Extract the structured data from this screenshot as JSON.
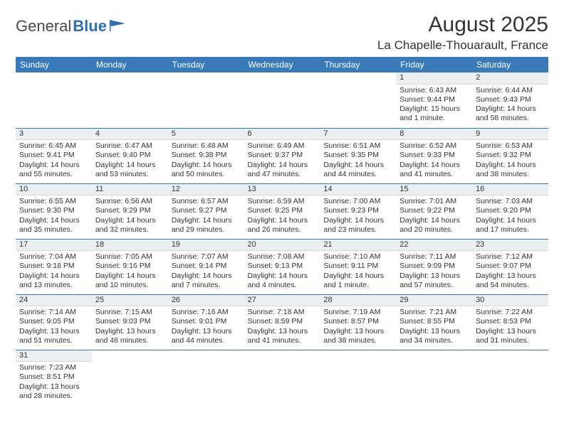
{
  "brand": {
    "part1": "General",
    "part2": "Blue"
  },
  "title": "August 2025",
  "location": "La Chapelle-Thouarault, France",
  "colors": {
    "header_bg": "#3a7ab8",
    "header_text": "#ffffff",
    "daynum_bg": "#eceff1",
    "cell_border": "#3a7ab8",
    "text": "#333333",
    "brand_blue": "#2f6fb0"
  },
  "typography": {
    "title_fontsize": 30,
    "location_fontsize": 17,
    "header_fontsize": 12,
    "cell_fontsize": 10.5
  },
  "weekdays": [
    "Sunday",
    "Monday",
    "Tuesday",
    "Wednesday",
    "Thursday",
    "Friday",
    "Saturday"
  ],
  "weeks": [
    [
      null,
      null,
      null,
      null,
      null,
      {
        "n": "1",
        "sr": "Sunrise: 6:43 AM",
        "ss": "Sunset: 9:44 PM",
        "d1": "Daylight: 15 hours",
        "d2": "and 1 minute."
      },
      {
        "n": "2",
        "sr": "Sunrise: 6:44 AM",
        "ss": "Sunset: 9:43 PM",
        "d1": "Daylight: 14 hours",
        "d2": "and 58 minutes."
      }
    ],
    [
      {
        "n": "3",
        "sr": "Sunrise: 6:45 AM",
        "ss": "Sunset: 9:41 PM",
        "d1": "Daylight: 14 hours",
        "d2": "and 55 minutes."
      },
      {
        "n": "4",
        "sr": "Sunrise: 6:47 AM",
        "ss": "Sunset: 9:40 PM",
        "d1": "Daylight: 14 hours",
        "d2": "and 53 minutes."
      },
      {
        "n": "5",
        "sr": "Sunrise: 6:48 AM",
        "ss": "Sunset: 9:38 PM",
        "d1": "Daylight: 14 hours",
        "d2": "and 50 minutes."
      },
      {
        "n": "6",
        "sr": "Sunrise: 6:49 AM",
        "ss": "Sunset: 9:37 PM",
        "d1": "Daylight: 14 hours",
        "d2": "and 47 minutes."
      },
      {
        "n": "7",
        "sr": "Sunrise: 6:51 AM",
        "ss": "Sunset: 9:35 PM",
        "d1": "Daylight: 14 hours",
        "d2": "and 44 minutes."
      },
      {
        "n": "8",
        "sr": "Sunrise: 6:52 AM",
        "ss": "Sunset: 9:33 PM",
        "d1": "Daylight: 14 hours",
        "d2": "and 41 minutes."
      },
      {
        "n": "9",
        "sr": "Sunrise: 6:53 AM",
        "ss": "Sunset: 9:32 PM",
        "d1": "Daylight: 14 hours",
        "d2": "and 38 minutes."
      }
    ],
    [
      {
        "n": "10",
        "sr": "Sunrise: 6:55 AM",
        "ss": "Sunset: 9:30 PM",
        "d1": "Daylight: 14 hours",
        "d2": "and 35 minutes."
      },
      {
        "n": "11",
        "sr": "Sunrise: 6:56 AM",
        "ss": "Sunset: 9:29 PM",
        "d1": "Daylight: 14 hours",
        "d2": "and 32 minutes."
      },
      {
        "n": "12",
        "sr": "Sunrise: 6:57 AM",
        "ss": "Sunset: 9:27 PM",
        "d1": "Daylight: 14 hours",
        "d2": "and 29 minutes."
      },
      {
        "n": "13",
        "sr": "Sunrise: 6:59 AM",
        "ss": "Sunset: 9:25 PM",
        "d1": "Daylight: 14 hours",
        "d2": "and 26 minutes."
      },
      {
        "n": "14",
        "sr": "Sunrise: 7:00 AM",
        "ss": "Sunset: 9:23 PM",
        "d1": "Daylight: 14 hours",
        "d2": "and 23 minutes."
      },
      {
        "n": "15",
        "sr": "Sunrise: 7:01 AM",
        "ss": "Sunset: 9:22 PM",
        "d1": "Daylight: 14 hours",
        "d2": "and 20 minutes."
      },
      {
        "n": "16",
        "sr": "Sunrise: 7:03 AM",
        "ss": "Sunset: 9:20 PM",
        "d1": "Daylight: 14 hours",
        "d2": "and 17 minutes."
      }
    ],
    [
      {
        "n": "17",
        "sr": "Sunrise: 7:04 AM",
        "ss": "Sunset: 9:18 PM",
        "d1": "Daylight: 14 hours",
        "d2": "and 13 minutes."
      },
      {
        "n": "18",
        "sr": "Sunrise: 7:05 AM",
        "ss": "Sunset: 9:16 PM",
        "d1": "Daylight: 14 hours",
        "d2": "and 10 minutes."
      },
      {
        "n": "19",
        "sr": "Sunrise: 7:07 AM",
        "ss": "Sunset: 9:14 PM",
        "d1": "Daylight: 14 hours",
        "d2": "and 7 minutes."
      },
      {
        "n": "20",
        "sr": "Sunrise: 7:08 AM",
        "ss": "Sunset: 9:13 PM",
        "d1": "Daylight: 14 hours",
        "d2": "and 4 minutes."
      },
      {
        "n": "21",
        "sr": "Sunrise: 7:10 AM",
        "ss": "Sunset: 9:11 PM",
        "d1": "Daylight: 14 hours",
        "d2": "and 1 minute."
      },
      {
        "n": "22",
        "sr": "Sunrise: 7:11 AM",
        "ss": "Sunset: 9:09 PM",
        "d1": "Daylight: 13 hours",
        "d2": "and 57 minutes."
      },
      {
        "n": "23",
        "sr": "Sunrise: 7:12 AM",
        "ss": "Sunset: 9:07 PM",
        "d1": "Daylight: 13 hours",
        "d2": "and 54 minutes."
      }
    ],
    [
      {
        "n": "24",
        "sr": "Sunrise: 7:14 AM",
        "ss": "Sunset: 9:05 PM",
        "d1": "Daylight: 13 hours",
        "d2": "and 51 minutes."
      },
      {
        "n": "25",
        "sr": "Sunrise: 7:15 AM",
        "ss": "Sunset: 9:03 PM",
        "d1": "Daylight: 13 hours",
        "d2": "and 48 minutes."
      },
      {
        "n": "26",
        "sr": "Sunrise: 7:16 AM",
        "ss": "Sunset: 9:01 PM",
        "d1": "Daylight: 13 hours",
        "d2": "and 44 minutes."
      },
      {
        "n": "27",
        "sr": "Sunrise: 7:18 AM",
        "ss": "Sunset: 8:59 PM",
        "d1": "Daylight: 13 hours",
        "d2": "and 41 minutes."
      },
      {
        "n": "28",
        "sr": "Sunrise: 7:19 AM",
        "ss": "Sunset: 8:57 PM",
        "d1": "Daylight: 13 hours",
        "d2": "and 38 minutes."
      },
      {
        "n": "29",
        "sr": "Sunrise: 7:21 AM",
        "ss": "Sunset: 8:55 PM",
        "d1": "Daylight: 13 hours",
        "d2": "and 34 minutes."
      },
      {
        "n": "30",
        "sr": "Sunrise: 7:22 AM",
        "ss": "Sunset: 8:53 PM",
        "d1": "Daylight: 13 hours",
        "d2": "and 31 minutes."
      }
    ],
    [
      {
        "n": "31",
        "sr": "Sunrise: 7:23 AM",
        "ss": "Sunset: 8:51 PM",
        "d1": "Daylight: 13 hours",
        "d2": "and 28 minutes."
      },
      null,
      null,
      null,
      null,
      null,
      null
    ]
  ]
}
